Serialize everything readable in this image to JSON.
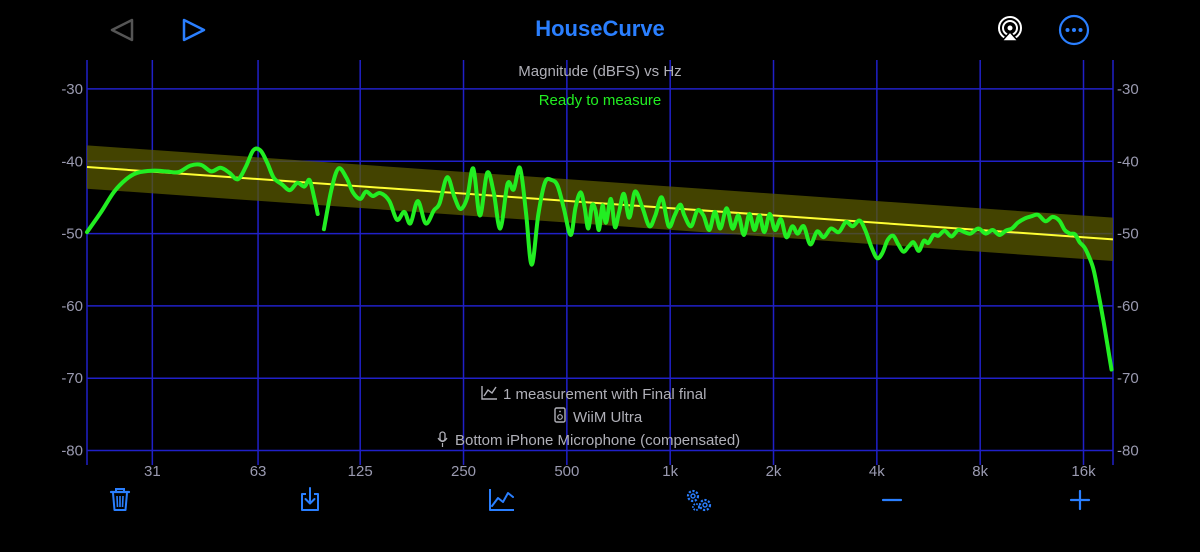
{
  "header": {
    "title": "HouseCurve"
  },
  "chart_data": {
    "type": "line",
    "title": "Magnitude (dBFS) vs Hz",
    "status": "Ready to measure",
    "x_scale": "log",
    "x_ticks": [
      31,
      63,
      125,
      250,
      500,
      1000,
      2000,
      4000,
      8000,
      16000
    ],
    "x_tick_labels": [
      "31",
      "63",
      "125",
      "250",
      "500",
      "1k",
      "2k",
      "4k",
      "8k",
      "16k"
    ],
    "y_ticks": [
      -30,
      -40,
      -50,
      -60,
      -70,
      -80
    ],
    "y_tick_labels": [
      "-30",
      "-40",
      "-50",
      "-60",
      "-70",
      "-80"
    ],
    "xlim": [
      20,
      19500
    ],
    "ylim": [
      -82,
      -26
    ],
    "grid": true,
    "target_curve": {
      "start": {
        "x": 20,
        "y": -40.8
      },
      "end": {
        "x": 19500,
        "y": -50.8
      },
      "band_upper_offset": 3,
      "band_lower_offset": -3,
      "color": "#ffff33",
      "band_color": "#5a5a00"
    },
    "measurement": {
      "color": "#22ee22",
      "segments": [
        [
          [
            20,
            -49.8
          ],
          [
            22,
            -47
          ],
          [
            24,
            -44.2
          ],
          [
            26,
            -42.5
          ],
          [
            28,
            -41.6
          ],
          [
            31,
            -41.3
          ],
          [
            34,
            -41.4
          ],
          [
            37,
            -41.5
          ],
          [
            40,
            -40.6
          ],
          [
            43,
            -40.5
          ],
          [
            46,
            -41.4
          ],
          [
            49,
            -40.9
          ],
          [
            52,
            -41.6
          ],
          [
            55,
            -42.5
          ],
          [
            58,
            -40.8
          ],
          [
            61,
            -38.5
          ],
          [
            64,
            -38.5
          ],
          [
            67,
            -40.2
          ],
          [
            70,
            -42.3
          ],
          [
            74,
            -43.2
          ],
          [
            78,
            -44.0
          ],
          [
            82,
            -43.0
          ],
          [
            86,
            -43.5
          ],
          [
            89,
            -42.6
          ],
          [
            92,
            -45.2
          ],
          [
            94,
            -47.3
          ]
        ],
        [
          [
            98,
            -49.4
          ],
          [
            103,
            -44.0
          ],
          [
            108,
            -41.0
          ],
          [
            114,
            -42.3
          ],
          [
            119,
            -44.3
          ],
          [
            125,
            -45.2
          ],
          [
            130,
            -44.2
          ],
          [
            136,
            -44.8
          ],
          [
            143,
            -44.4
          ],
          [
            152,
            -45.5
          ],
          [
            160,
            -48.1
          ],
          [
            168,
            -47.0
          ],
          [
            175,
            -48.6
          ],
          [
            184,
            -45.5
          ],
          [
            194,
            -48.6
          ],
          [
            205,
            -46.8
          ],
          [
            213,
            -45.8
          ],
          [
            224,
            -42.2
          ],
          [
            235,
            -44.9
          ],
          [
            245,
            -46.6
          ],
          [
            256,
            -45.1
          ],
          [
            267,
            -41.0
          ],
          [
            279,
            -47.5
          ],
          [
            293,
            -41.6
          ],
          [
            306,
            -44.3
          ],
          [
            320,
            -49.3
          ],
          [
            336,
            -43.1
          ],
          [
            350,
            -43.9
          ],
          [
            365,
            -40.9
          ],
          [
            380,
            -47.0
          ],
          [
            395,
            -54.3
          ],
          [
            413,
            -47.3
          ],
          [
            432,
            -42.9
          ],
          [
            452,
            -42.6
          ],
          [
            470,
            -43.4
          ],
          [
            490,
            -46.5
          ],
          [
            513,
            -50.2
          ],
          [
            530,
            -46.4
          ],
          [
            548,
            -44.3
          ],
          [
            563,
            -46.3
          ],
          [
            577,
            -49.3
          ],
          [
            592,
            -46.1
          ],
          [
            606,
            -46.8
          ],
          [
            620,
            -49.5
          ],
          [
            635,
            -46.1
          ],
          [
            650,
            -48.5
          ],
          [
            672,
            -45.2
          ],
          [
            690,
            -49.1
          ],
          [
            710,
            -47.0
          ],
          [
            733,
            -44.5
          ],
          [
            760,
            -47.8
          ],
          [
            790,
            -44.2
          ],
          [
            830,
            -46.4
          ],
          [
            870,
            -49.0
          ],
          [
            905,
            -47.5
          ],
          [
            945,
            -45.0
          ],
          [
            990,
            -49.0
          ],
          [
            1030,
            -47.5
          ],
          [
            1070,
            -46.0
          ],
          [
            1100,
            -47.5
          ],
          [
            1150,
            -49.0
          ],
          [
            1200,
            -46.8
          ],
          [
            1250,
            -47.5
          ],
          [
            1300,
            -49.5
          ],
          [
            1350,
            -47.0
          ],
          [
            1400,
            -49.3
          ],
          [
            1460,
            -46.5
          ],
          [
            1520,
            -49.3
          ],
          [
            1580,
            -47.5
          ],
          [
            1640,
            -50.2
          ],
          [
            1700,
            -47.3
          ],
          [
            1760,
            -49.5
          ],
          [
            1820,
            -47.5
          ],
          [
            1880,
            -49.8
          ],
          [
            1950,
            -47.3
          ],
          [
            2020,
            -49.5
          ],
          [
            2100,
            -48.0
          ],
          [
            2180,
            -50.5
          ],
          [
            2270,
            -49.0
          ],
          [
            2350,
            -50.0
          ],
          [
            2450,
            -49.0
          ],
          [
            2560,
            -51.5
          ],
          [
            2680,
            -49.7
          ],
          [
            2800,
            -50.5
          ],
          [
            2940,
            -49.3
          ],
          [
            3100,
            -49.8
          ],
          [
            3250,
            -48.4
          ],
          [
            3400,
            -49.0
          ],
          [
            3560,
            -48.2
          ],
          [
            3700,
            -49.5
          ],
          [
            3860,
            -51.9
          ],
          [
            4010,
            -53.4
          ],
          [
            4150,
            -52.7
          ],
          [
            4300,
            -50.9
          ],
          [
            4460,
            -50.3
          ],
          [
            4620,
            -51.5
          ],
          [
            4780,
            -52.5
          ],
          [
            4950,
            -51.8
          ],
          [
            5120,
            -51.2
          ],
          [
            5300,
            -52.4
          ],
          [
            5480,
            -51.0
          ],
          [
            5650,
            -51.3
          ],
          [
            5850,
            -50.2
          ],
          [
            6050,
            -50.3
          ],
          [
            6300,
            -49.6
          ],
          [
            6600,
            -50.4
          ],
          [
            6900,
            -49.5
          ],
          [
            7200,
            -49.8
          ],
          [
            7500,
            -50.0
          ],
          [
            7900,
            -49.3
          ],
          [
            8300,
            -50.0
          ],
          [
            8700,
            -49.5
          ],
          [
            9100,
            -50.2
          ],
          [
            9500,
            -49.6
          ],
          [
            9900,
            -49.3
          ],
          [
            10300,
            -48.5
          ],
          [
            10800,
            -47.9
          ],
          [
            11300,
            -47.6
          ],
          [
            11800,
            -47.4
          ],
          [
            12400,
            -48.3
          ],
          [
            13000,
            -47.7
          ],
          [
            13600,
            -48.2
          ],
          [
            14100,
            -49.5
          ],
          [
            14600,
            -50.0
          ],
          [
            15100,
            -50.1
          ],
          [
            15600,
            -51.2
          ],
          [
            16100,
            -51.9
          ],
          [
            16600,
            -53.2
          ],
          [
            17100,
            -54.9
          ],
          [
            17600,
            -57.8
          ],
          [
            18200,
            -61.5
          ],
          [
            18800,
            -65.5
          ],
          [
            19300,
            -68.8
          ]
        ]
      ]
    }
  },
  "info": {
    "measurements": "1 measurement with Final final",
    "device": "WiiM Ultra",
    "microphone": "Bottom iPhone Microphone (compensated)"
  },
  "icons": {
    "back": "back-triangle-icon",
    "forward": "play-triangle-icon",
    "airplay": "airplay-audio-icon",
    "more": "ellipsis-circle-icon",
    "trash": "trash-icon",
    "export": "download-tray-icon",
    "chart": "line-chart-icon",
    "settings": "gears-icon",
    "minus": "minus-icon",
    "plus": "plus-icon"
  },
  "colors": {
    "accent": "#2a7fff",
    "grid": "#2020c8",
    "axis_label": "#9a9ab0",
    "status": "#22ee22",
    "info_text": "#b0b0b8"
  }
}
